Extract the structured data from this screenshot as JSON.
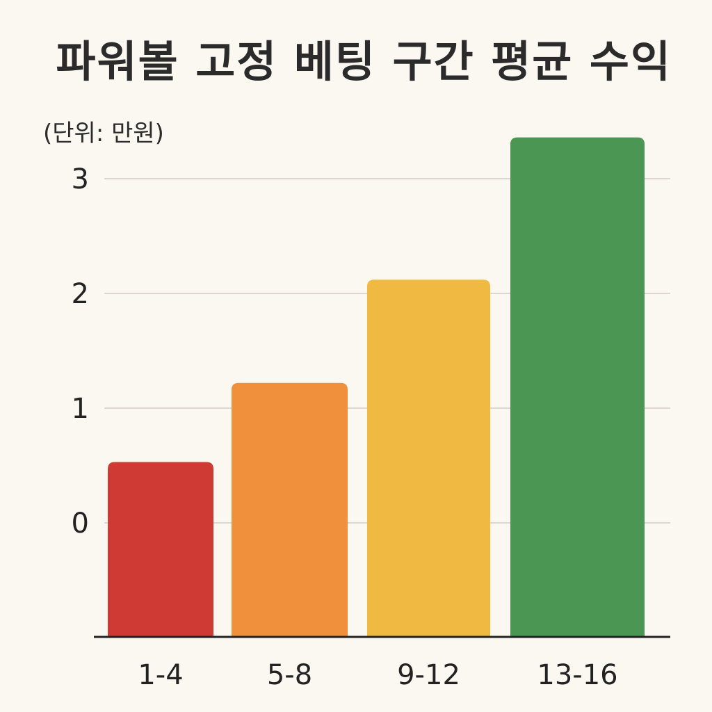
{
  "chart_data": {
    "type": "bar",
    "title": "파워볼 고정 베팅 구간 평균 수익",
    "unit_label": "(단위: 만원)",
    "xlabel": "",
    "ylabel": "",
    "categories": [
      "1-4",
      "5-8",
      "9-12",
      "13-16"
    ],
    "values": [
      0.53,
      1.22,
      2.12,
      3.36
    ],
    "y_ticks": [
      0,
      1,
      2,
      3
    ],
    "ylim": [
      -1,
      3.6
    ],
    "grid": true,
    "legend": "none",
    "colors": [
      "#d03a35",
      "#f0903c",
      "#efb942",
      "#4c9654"
    ]
  }
}
